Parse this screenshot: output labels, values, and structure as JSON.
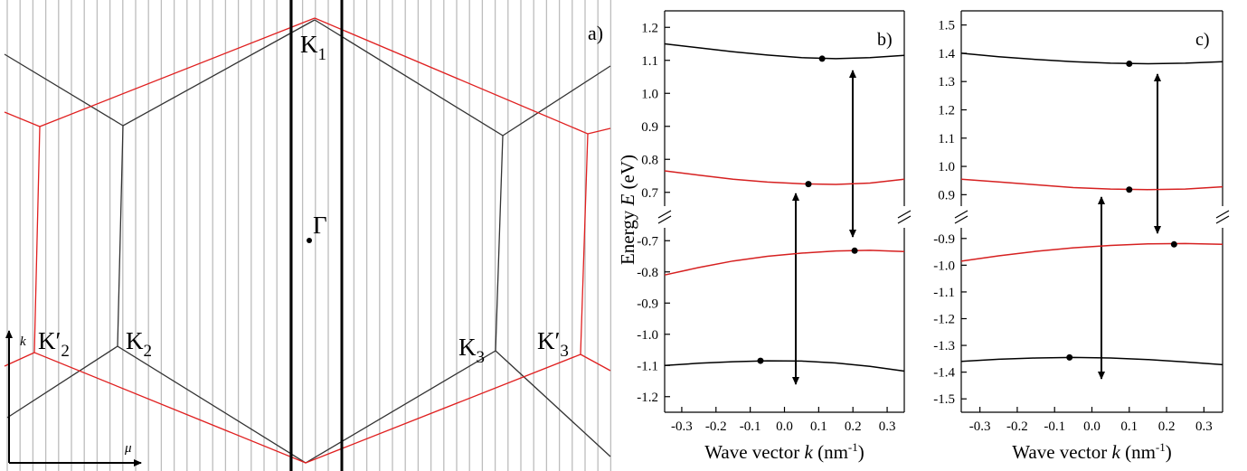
{
  "diagram": {
    "panel_label": "a)",
    "labels": [
      {
        "main": "K",
        "sub": "1"
      },
      {
        "main": "Γ"
      },
      {
        "main": "K′",
        "sub": "2"
      },
      {
        "main": "K",
        "sub": "2"
      },
      {
        "main": "K",
        "sub": "3"
      },
      {
        "main": "K′",
        "sub": "3"
      }
    ],
    "axis_labels": [
      "k",
      "μ"
    ]
  },
  "chart_data": [
    {
      "type": "line",
      "panel_label": "b)",
      "ylabel": [
        "Energy ",
        "E",
        " (eV)"
      ],
      "xlabel": [
        "Wave vector ",
        "k",
        " (nm",
        "-1",
        ")"
      ],
      "xlim": [
        -0.35,
        0.35
      ],
      "xticks": [
        -0.3,
        -0.2,
        -0.1,
        {
          "value": 0,
          "label": "0.0"
        },
        0.1,
        0.2,
        0.3
      ],
      "segments": [
        {
          "ylim": [
            -1.25,
            -0.65
          ],
          "yticks": [
            -1.2,
            -1.1,
            {
              "value": -1,
              "label": "-1.0"
            },
            -0.9,
            -0.8,
            -0.7
          ]
        },
        {
          "ylim": [
            0.65,
            1.25
          ],
          "yticks": [
            0.7,
            0.8,
            0.9,
            {
              "value": 1,
              "label": "1.0"
            },
            1.1,
            1.2
          ]
        }
      ],
      "x": [
        -0.35,
        -0.25,
        -0.15,
        -0.05,
        0.05,
        0.15,
        0.25,
        0.35
      ],
      "series": [
        {
          "color": "#000000",
          "segment": 1,
          "values": [
            1.15,
            1.138,
            1.126,
            1.116,
            1.108,
            1.105,
            1.108,
            1.115
          ]
        },
        {
          "color": "#d62020",
          "segment": 1,
          "values": [
            0.765,
            0.752,
            0.74,
            0.731,
            0.726,
            0.724,
            0.728,
            0.74
          ]
        },
        {
          "color": "#d62020",
          "segment": 0,
          "values": [
            -0.81,
            -0.786,
            -0.765,
            -0.75,
            -0.74,
            -0.733,
            -0.731,
            -0.735
          ]
        },
        {
          "color": "#000000",
          "segment": 0,
          "values": [
            -1.1,
            -1.093,
            -1.088,
            -1.085,
            -1.086,
            -1.092,
            -1.103,
            -1.118
          ]
        }
      ],
      "markers": {
        "x": [
          0.11,
          0.07,
          0.205,
          -0.07
        ],
        "values": [
          1.105,
          0.725,
          -0.732,
          -1.085
        ],
        "segment": [
          1,
          1,
          0,
          0
        ]
      }
    },
    {
      "type": "line",
      "panel_label": "c)",
      "xlabel": [
        "Wave vector ",
        "k",
        " (nm",
        "-1",
        ")"
      ],
      "xlim": [
        -0.35,
        0.35
      ],
      "xticks": [
        -0.3,
        -0.2,
        -0.1,
        {
          "value": 0,
          "label": "0.0"
        },
        0.1,
        0.2,
        0.3
      ],
      "segments": [
        {
          "ylim": [
            -1.55,
            -0.85
          ],
          "yticks": [
            -1.5,
            -1.4,
            -1.3,
            -1.2,
            -1.1,
            {
              "value": -1,
              "label": "-1.0"
            },
            -0.9
          ]
        },
        {
          "ylim": [
            0.85,
            1.55
          ],
          "yticks": [
            0.9,
            {
              "value": 1,
              "label": "1.0"
            },
            1.1,
            1.2,
            1.3,
            1.4,
            1.5
          ]
        }
      ],
      "x": [
        -0.35,
        -0.25,
        -0.15,
        -0.05,
        0.05,
        0.15,
        0.25,
        0.35
      ],
      "series": [
        {
          "color": "#000000",
          "segment": 1,
          "values": [
            1.4,
            1.388,
            1.378,
            1.37,
            1.365,
            1.363,
            1.365,
            1.37
          ]
        },
        {
          "color": "#d62020",
          "segment": 1,
          "values": [
            0.955,
            0.945,
            0.935,
            0.925,
            0.92,
            0.918,
            0.92,
            0.928
          ]
        },
        {
          "color": "#d62020",
          "segment": 0,
          "values": [
            -0.985,
            -0.965,
            -0.948,
            -0.935,
            -0.926,
            -0.92,
            -0.919,
            -0.922
          ]
        },
        {
          "color": "#000000",
          "segment": 0,
          "values": [
            -1.36,
            -1.352,
            -1.347,
            -1.345,
            -1.347,
            -1.353,
            -1.362,
            -1.372
          ]
        }
      ],
      "markers": {
        "x": [
          0.1,
          0.1,
          0.22,
          -0.06
        ],
        "values": [
          1.363,
          0.918,
          -0.922,
          -1.345
        ],
        "segment": [
          1,
          1,
          0,
          0
        ]
      }
    }
  ]
}
